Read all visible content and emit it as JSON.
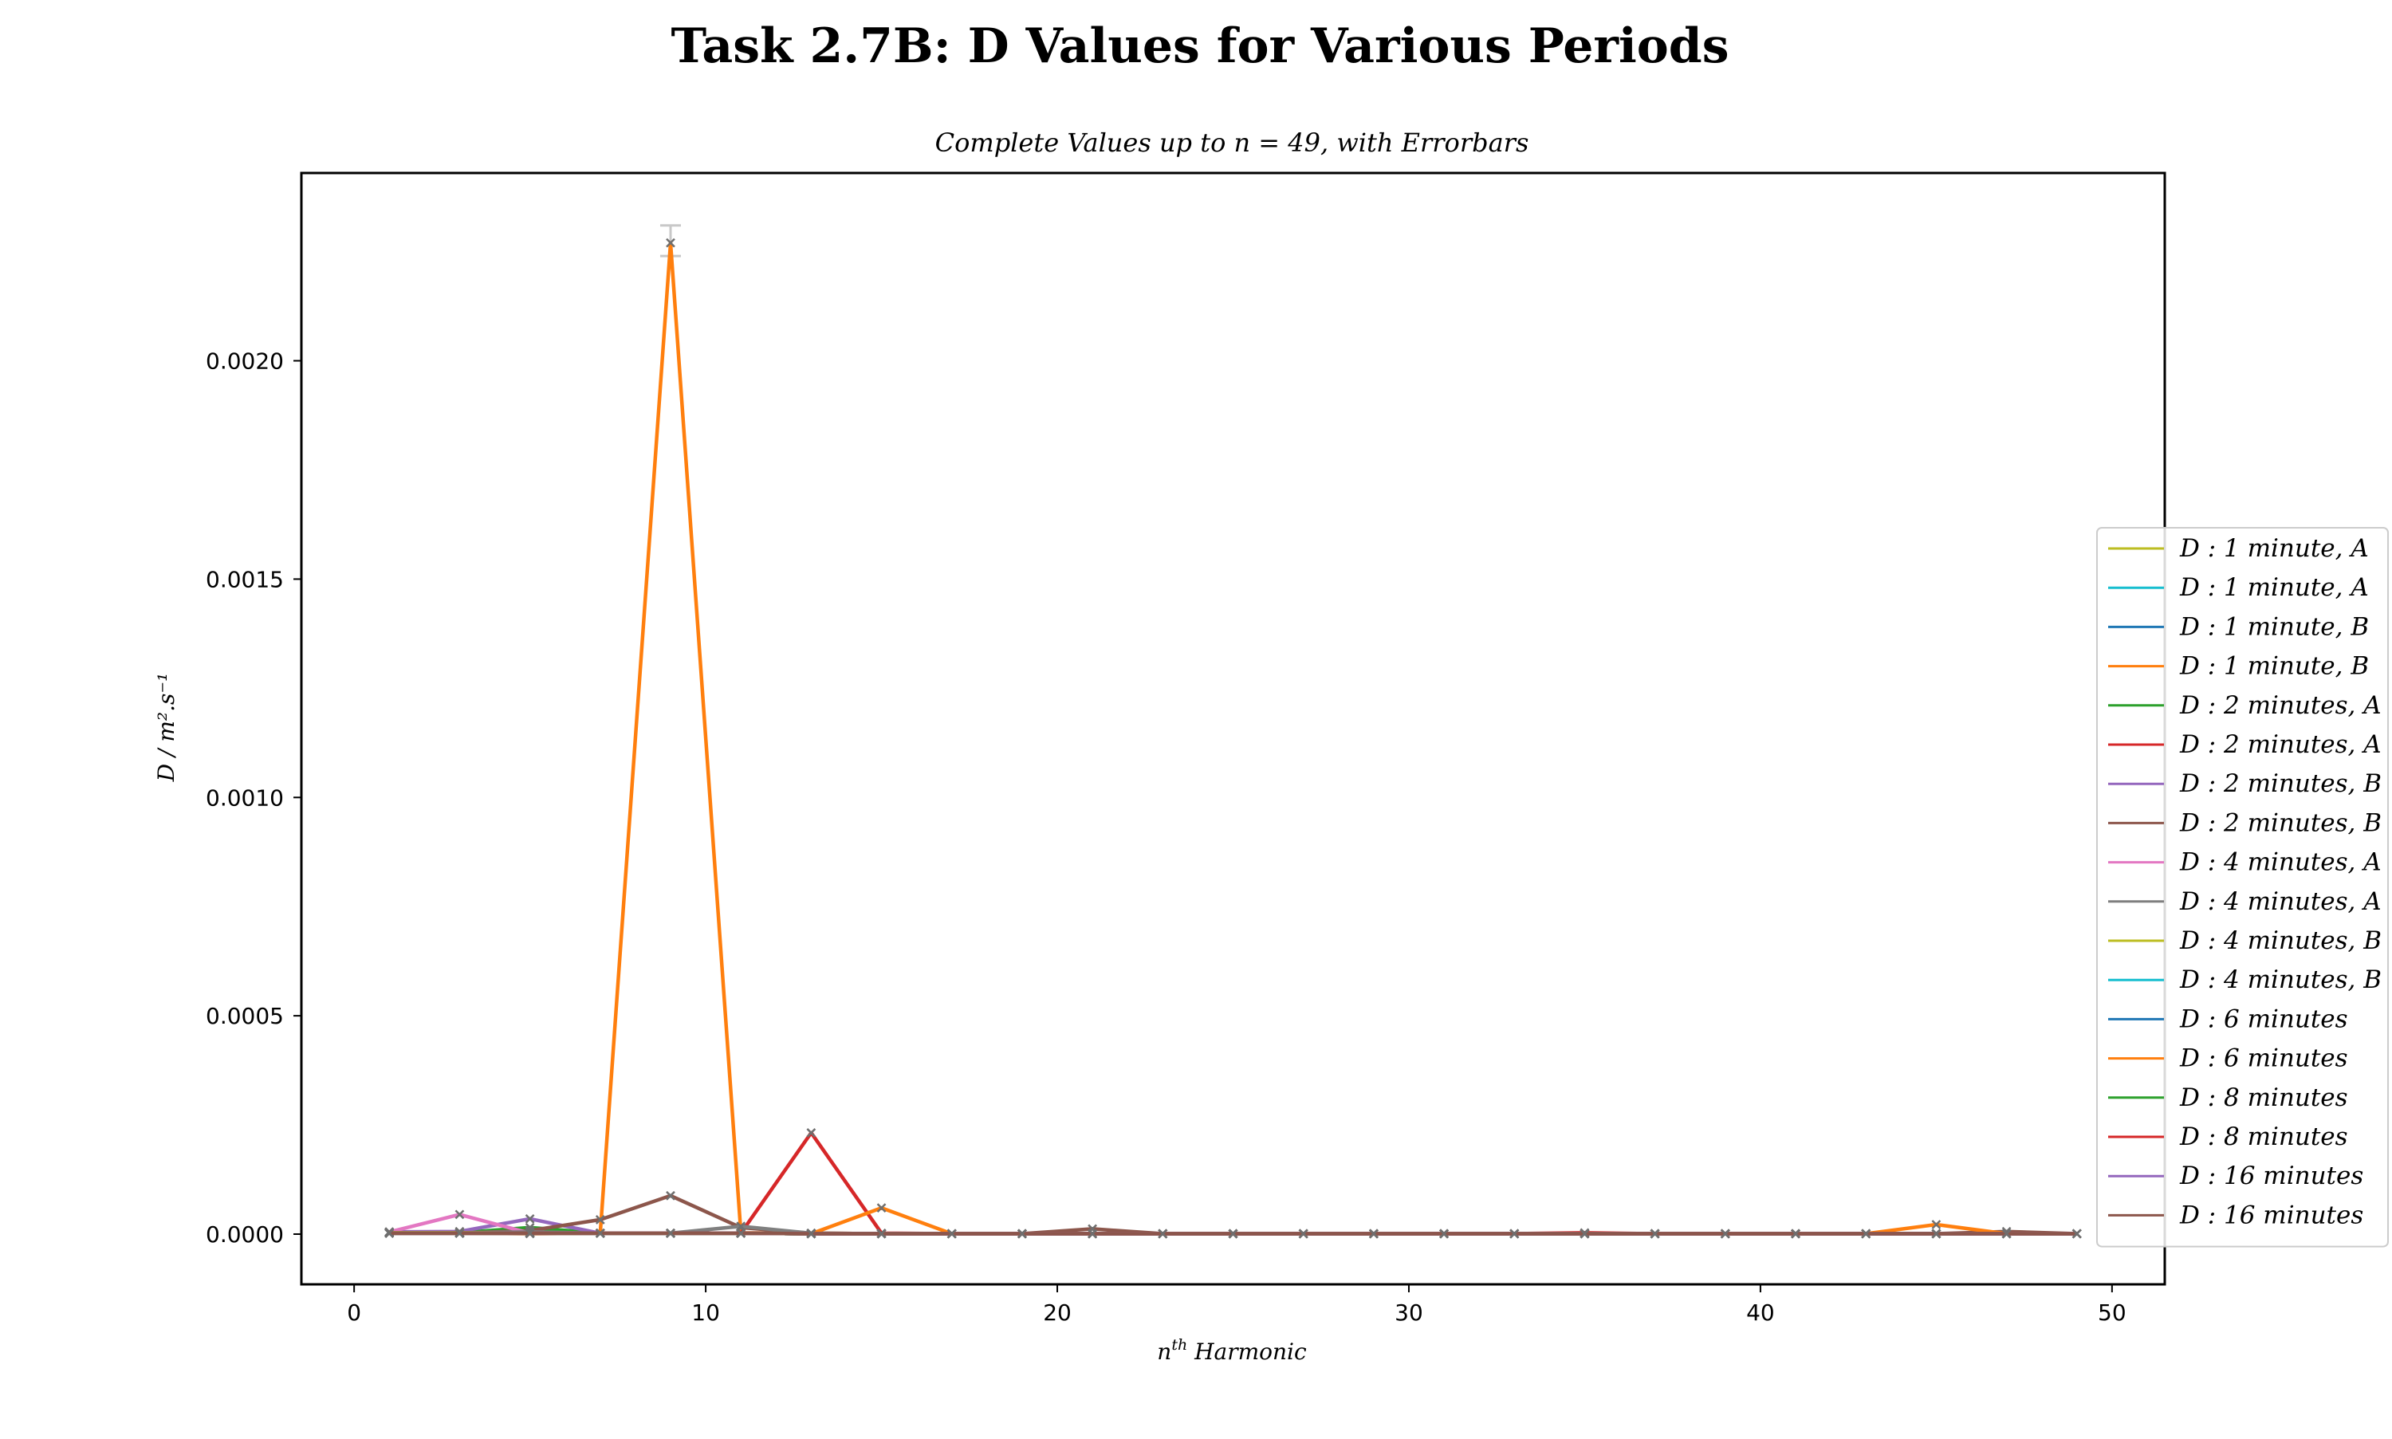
{
  "chart_data": {
    "type": "line",
    "title": "Task 2.7B: D Values for Various Periods",
    "subtitle": "Complete Values up to n = 49, with Errorbars",
    "xlabel_base": "n",
    "xlabel_sup": "th",
    "xlabel_rest": " Harmonic",
    "ylabel": "D / m².s⁻¹",
    "xlim": [
      -1.5,
      51.5
    ],
    "ylim": [
      -0.000115,
      0.00243
    ],
    "xticks": [
      0,
      10,
      20,
      30,
      40,
      50
    ],
    "xtick_labels": [
      "0",
      "10",
      "20",
      "30",
      "40",
      "50"
    ],
    "yticks": [
      0,
      0.0005,
      0.001,
      0.0015,
      0.002
    ],
    "ytick_labels": [
      "0.0000",
      "0.0005",
      "0.0010",
      "0.0015",
      "0.0020"
    ],
    "grid": false,
    "legend_position": "right",
    "x": [
      1,
      3,
      5,
      7,
      9,
      11,
      13,
      15,
      17,
      19,
      21,
      23,
      25,
      27,
      29,
      31,
      33,
      35,
      37,
      39,
      41,
      43,
      45,
      47,
      49
    ],
    "series": [
      {
        "name": "D : 1 minute, A",
        "color": "#bcbd22",
        "values": [
          3e-06,
          2e-06,
          3e-06,
          2e-06,
          2e-06,
          2e-06,
          1e-06,
          1e-06,
          1e-06,
          1e-06,
          1e-06,
          1e-06,
          1e-06,
          1e-06,
          1e-06,
          1e-06,
          1e-06,
          1e-06,
          1e-06,
          1e-06,
          1e-06,
          1e-06,
          1e-06,
          1e-06,
          1e-06
        ]
      },
      {
        "name": "D : 1 minute, A",
        "color": "#17becf",
        "values": [
          4e-06,
          3e-06,
          2e-06,
          2e-06,
          2e-06,
          2e-06,
          1e-06,
          1e-06,
          1e-06,
          1e-06,
          1e-06,
          1e-06,
          1e-06,
          1e-06,
          1e-06,
          1e-06,
          1e-06,
          1e-06,
          1e-06,
          1e-06,
          1e-06,
          1e-06,
          1e-06,
          1e-06,
          1e-06
        ]
      },
      {
        "name": "D : 1 minute, B",
        "color": "#1f77b4",
        "values": [
          5e-06,
          3e-06,
          2e-06,
          2e-06,
          2e-06,
          2e-06,
          1e-06,
          1e-06,
          1e-06,
          1e-06,
          1e-06,
          1e-06,
          1e-06,
          1e-06,
          1e-06,
          1e-06,
          1e-06,
          1e-06,
          1e-06,
          1e-06,
          1e-06,
          1e-06,
          1e-06,
          1e-06,
          1e-06
        ]
      },
      {
        "name": "D : 1 minute, B",
        "color": "#ff7f0e",
        "values": [
          3e-06,
          2e-06,
          1e-06,
          2e-06,
          0.00227,
          3e-06,
          2e-06,
          1e-06,
          1e-06,
          1e-06,
          1e-06,
          1e-06,
          1e-06,
          1e-06,
          1e-06,
          1e-06,
          1e-06,
          1e-06,
          1e-06,
          1e-06,
          1e-06,
          1e-06,
          1e-06,
          1e-06,
          1e-06
        ]
      },
      {
        "name": "D : 2 minutes, A",
        "color": "#2ca02c",
        "values": [
          2e-06,
          3e-06,
          1.5e-05,
          2e-06,
          2e-06,
          2e-06,
          1e-06,
          1e-06,
          1e-06,
          1e-06,
          1e-06,
          1e-06,
          1e-06,
          1e-06,
          1e-06,
          1e-06,
          1e-06,
          1e-06,
          1e-06,
          1e-06,
          1e-06,
          1e-06,
          1e-06,
          1e-06,
          1e-06
        ]
      },
      {
        "name": "D : 2 minutes, A",
        "color": "#d62728",
        "values": [
          2e-06,
          2e-06,
          2e-06,
          2e-06,
          2e-06,
          2e-06,
          0.000232,
          2e-06,
          1e-06,
          1e-06,
          1e-06,
          1e-06,
          1e-06,
          1e-06,
          1e-06,
          1e-06,
          1e-06,
          3e-06,
          1e-06,
          1e-06,
          1e-06,
          1e-06,
          1e-06,
          1e-06,
          1e-06
        ]
      },
      {
        "name": "D : 2 minutes, B",
        "color": "#9467bd",
        "values": [
          5e-06,
          6e-06,
          3.5e-05,
          2e-06,
          2e-06,
          2e-06,
          1e-06,
          1e-06,
          1e-06,
          1e-06,
          1e-06,
          1e-06,
          1e-06,
          1e-06,
          1e-06,
          1e-06,
          1e-06,
          1e-06,
          1e-06,
          1e-06,
          1e-06,
          1e-06,
          1e-06,
          1e-06,
          1e-06
        ]
      },
      {
        "name": "D : 2 minutes, B",
        "color": "#8c564b",
        "values": [
          2e-06,
          2e-06,
          8e-06,
          3.3e-05,
          8.8e-05,
          1.5e-05,
          2e-06,
          1e-06,
          1e-06,
          1e-06,
          1.2e-05,
          1e-06,
          1e-06,
          1e-06,
          1e-06,
          1e-06,
          1e-06,
          1e-06,
          1e-06,
          1e-06,
          1e-06,
          1e-06,
          1e-06,
          6e-06,
          1e-06
        ]
      },
      {
        "name": "D : 4 minutes, A",
        "color": "#e377c2",
        "values": [
          5e-06,
          4.5e-05,
          2e-06,
          2e-06,
          2e-06,
          2e-06,
          1e-06,
          1e-06,
          1e-06,
          1e-06,
          1e-06,
          1e-06,
          1e-06,
          1e-06,
          1e-06,
          1e-06,
          1e-06,
          1e-06,
          1e-06,
          1e-06,
          1e-06,
          1e-06,
          1e-06,
          1e-06,
          1e-06
        ]
      },
      {
        "name": "D : 4 minutes, A",
        "color": "#7f7f7f",
        "values": [
          3e-06,
          3e-06,
          5e-06,
          2e-06,
          2e-06,
          1.8e-05,
          2e-06,
          1e-06,
          1e-06,
          1e-06,
          1e-06,
          1e-06,
          1e-06,
          1e-06,
          1e-06,
          1e-06,
          1e-06,
          1e-06,
          1e-06,
          1e-06,
          1e-06,
          1e-06,
          1e-06,
          1e-06,
          1e-06
        ]
      },
      {
        "name": "D : 4 minutes, B",
        "color": "#bcbd22",
        "values": [
          3e-06,
          3e-06,
          2e-06,
          2e-06,
          2e-06,
          2e-06,
          1e-06,
          1e-06,
          1e-06,
          1e-06,
          1e-06,
          1e-06,
          1e-06,
          1e-06,
          1e-06,
          1e-06,
          1e-06,
          1e-06,
          1e-06,
          1e-06,
          1e-06,
          1e-06,
          1e-06,
          1e-06,
          1e-06
        ]
      },
      {
        "name": "D : 4 minutes, B",
        "color": "#17becf",
        "values": [
          2e-06,
          2e-06,
          2e-06,
          2e-06,
          2e-06,
          2e-06,
          1e-06,
          1e-06,
          1e-06,
          1e-06,
          1e-06,
          1e-06,
          1e-06,
          1e-06,
          1e-06,
          1e-06,
          1e-06,
          1e-06,
          1e-06,
          1e-06,
          1e-06,
          1e-06,
          1e-06,
          1e-06,
          1e-06
        ]
      },
      {
        "name": "D : 6 minutes",
        "color": "#1f77b4",
        "values": [
          2e-06,
          2e-06,
          2e-06,
          2e-06,
          2e-06,
          2e-06,
          1e-06,
          1e-06,
          1e-06,
          1e-06,
          1e-06,
          1e-06,
          1e-06,
          1e-06,
          1e-06,
          1e-06,
          1e-06,
          1e-06,
          1e-06,
          1e-06,
          1e-06,
          1e-06,
          1e-06,
          1e-06,
          1e-06
        ]
      },
      {
        "name": "D : 6 minutes",
        "color": "#ff7f0e",
        "values": [
          2e-06,
          2e-06,
          2e-06,
          2e-06,
          2e-06,
          2e-06,
          1e-06,
          6e-05,
          1e-06,
          1e-06,
          1e-06,
          1e-06,
          1e-06,
          1e-06,
          1e-06,
          1e-06,
          1e-06,
          1e-06,
          1e-06,
          1e-06,
          1e-06,
          1e-06,
          2.2e-05,
          1e-06,
          1e-06
        ]
      },
      {
        "name": "D : 8 minutes",
        "color": "#2ca02c",
        "values": [
          2e-06,
          2e-06,
          2e-06,
          2e-06,
          2e-06,
          2e-06,
          1e-06,
          1e-06,
          1e-06,
          1e-06,
          1e-06,
          1e-06,
          1e-06,
          1e-06,
          1e-06,
          1e-06,
          1e-06,
          1e-06,
          1e-06,
          1e-06,
          1e-06,
          1e-06,
          1e-06,
          1e-06,
          1e-06
        ]
      },
      {
        "name": "D : 8 minutes",
        "color": "#d62728",
        "values": [
          2e-06,
          2e-06,
          2e-06,
          2e-06,
          2e-06,
          2e-06,
          1e-06,
          1e-06,
          1e-06,
          1e-06,
          1e-06,
          1e-06,
          1e-06,
          1e-06,
          1e-06,
          1e-06,
          1e-06,
          1e-06,
          1e-06,
          1e-06,
          1e-06,
          1e-06,
          1e-06,
          1e-06,
          1e-06
        ]
      },
      {
        "name": "D : 16 minutes",
        "color": "#9467bd",
        "values": [
          2e-06,
          2e-06,
          2e-06,
          2e-06,
          2e-06,
          2e-06,
          1e-06,
          1e-06,
          1e-06,
          1e-06,
          1e-06,
          1e-06,
          1e-06,
          1e-06,
          1e-06,
          1e-06,
          1e-06,
          1e-06,
          1e-06,
          1e-06,
          1e-06,
          1e-06,
          1e-06,
          1e-06,
          1e-06
        ]
      },
      {
        "name": "D : 16 minutes",
        "color": "#8c564b",
        "values": [
          2e-06,
          2e-06,
          2e-06,
          2e-06,
          2e-06,
          2e-06,
          1e-06,
          1e-06,
          1e-06,
          1e-06,
          1e-06,
          1e-06,
          1e-06,
          1e-06,
          1e-06,
          1e-06,
          1e-06,
          1e-06,
          1e-06,
          1e-06,
          1e-06,
          1e-06,
          1e-06,
          1e-06,
          1e-06
        ]
      }
    ]
  }
}
